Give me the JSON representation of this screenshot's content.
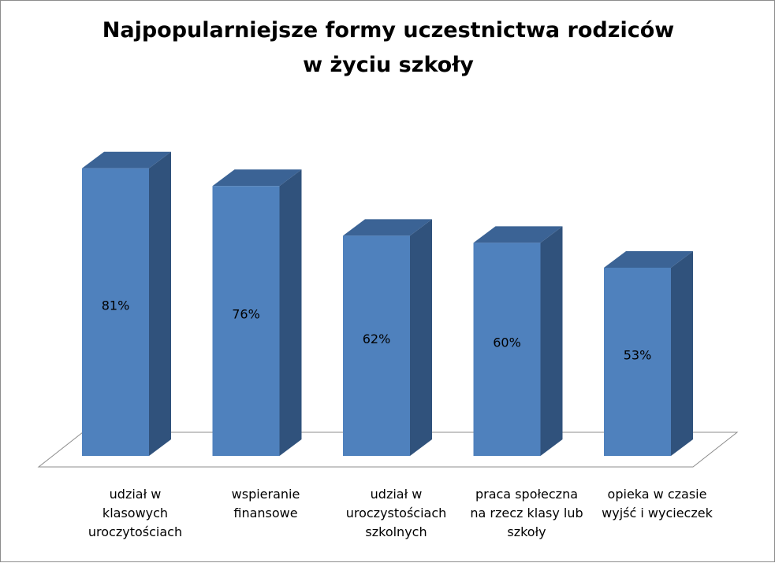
{
  "chart_data": {
    "type": "bar",
    "title_lines": [
      "Najpopularniejsze formy uczestnictwa rodziców",
      "w życiu szkoły"
    ],
    "categories": [
      [
        "udział w",
        "klasowych",
        "uroczytościach"
      ],
      [
        "wspieranie",
        "finansowe"
      ],
      [
        "udział w",
        "uroczystościach",
        "szkolnych"
      ],
      [
        "praca społeczna",
        "na rzecz klasy lub",
        "szkoły"
      ],
      [
        "opieka w czasie",
        "wyjść i wycieczek"
      ]
    ],
    "values": [
      81,
      76,
      62,
      60,
      53
    ],
    "value_labels": [
      "81%",
      "76%",
      "62%",
      "60%",
      "53%"
    ],
    "bar_colors": {
      "front": "#4f81bd",
      "side": "#30527c",
      "top": "#3b6395"
    },
    "projection": "3d",
    "grid": false,
    "legend": "none"
  }
}
